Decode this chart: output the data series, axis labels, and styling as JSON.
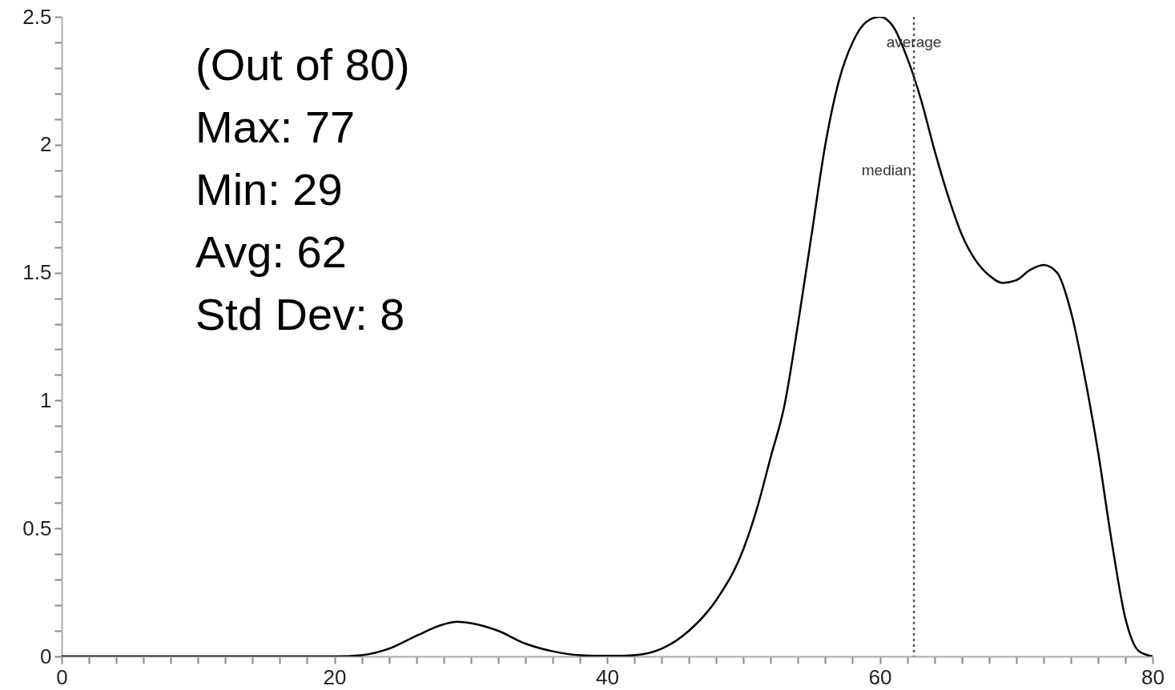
{
  "chart_data": {
    "type": "line",
    "x": [
      0,
      20,
      22,
      24,
      26,
      28,
      29,
      30,
      32,
      34,
      36,
      38,
      40,
      42,
      44,
      46,
      48,
      50,
      51,
      52,
      53,
      54,
      55,
      56,
      57,
      58,
      59,
      60,
      61,
      62,
      63,
      64,
      65,
      66,
      67,
      68,
      69,
      70,
      71,
      72,
      73,
      74,
      75,
      76,
      77,
      78,
      79,
      80
    ],
    "series": [
      {
        "color": "#000000",
        "values": [
          0,
          0,
          0.005,
          0.03,
          0.08,
          0.125,
          0.135,
          0.13,
          0.1,
          0.05,
          0.02,
          0.005,
          0.002,
          0.005,
          0.03,
          0.1,
          0.22,
          0.42,
          0.58,
          0.78,
          0.98,
          1.3,
          1.65,
          2.0,
          2.25,
          2.4,
          2.48,
          2.5,
          2.46,
          2.34,
          2.18,
          1.98,
          1.8,
          1.65,
          1.55,
          1.49,
          1.46,
          1.47,
          1.51,
          1.53,
          1.5,
          1.35,
          1.1,
          0.8,
          0.45,
          0.15,
          0.02,
          0
        ]
      }
    ],
    "xlim": [
      0,
      80
    ],
    "xticks": [
      0,
      {
        "value": 2,
        "label": null
      },
      {
        "value": 4,
        "label": null
      },
      {
        "value": 6,
        "label": null
      },
      {
        "value": 8,
        "label": null
      },
      {
        "value": 10,
        "label": null
      },
      {
        "value": 12,
        "label": null
      },
      {
        "value": 14,
        "label": null
      },
      {
        "value": 16,
        "label": null
      },
      {
        "value": 18,
        "label": null
      },
      20,
      {
        "value": 22,
        "label": null
      },
      {
        "value": 24,
        "label": null
      },
      {
        "value": 26,
        "label": null
      },
      {
        "value": 28,
        "label": null
      },
      {
        "value": 30,
        "label": null
      },
      {
        "value": 32,
        "label": null
      },
      {
        "value": 34,
        "label": null
      },
      {
        "value": 36,
        "label": null
      },
      {
        "value": 38,
        "label": null
      },
      40,
      {
        "value": 42,
        "label": null
      },
      {
        "value": 44,
        "label": null
      },
      {
        "value": 46,
        "label": null
      },
      {
        "value": 48,
        "label": null
      },
      {
        "value": 50,
        "label": null
      },
      {
        "value": 52,
        "label": null
      },
      {
        "value": 54,
        "label": null
      },
      {
        "value": 56,
        "label": null
      },
      {
        "value": 58,
        "label": null
      },
      60,
      {
        "value": 62,
        "label": null
      },
      {
        "value": 64,
        "label": null
      },
      {
        "value": 66,
        "label": null
      },
      {
        "value": 68,
        "label": null
      },
      {
        "value": 70,
        "label": null
      },
      {
        "value": 72,
        "label": null
      },
      {
        "value": 74,
        "label": null
      },
      {
        "value": 76,
        "label": null
      },
      {
        "value": 78,
        "label": null
      },
      80
    ],
    "ylim": [
      0,
      2.5
    ],
    "yticks": [
      0,
      {
        "value": 0.1,
        "label": null
      },
      {
        "value": 0.2,
        "label": null
      },
      {
        "value": 0.3,
        "label": null
      },
      {
        "value": 0.4,
        "label": null
      },
      0.5,
      {
        "value": 0.6,
        "label": null
      },
      {
        "value": 0.7,
        "label": null
      },
      {
        "value": 0.8,
        "label": null
      },
      {
        "value": 0.9,
        "label": null
      },
      1,
      {
        "value": 1.1,
        "label": null
      },
      {
        "value": 1.2,
        "label": null
      },
      {
        "value": 1.3,
        "label": null
      },
      {
        "value": 1.4,
        "label": null
      },
      1.5,
      {
        "value": 1.6,
        "label": null
      },
      {
        "value": 1.7,
        "label": null
      },
      {
        "value": 1.8,
        "label": null
      },
      {
        "value": 1.9,
        "label": null
      },
      2,
      {
        "value": 2.1,
        "label": null
      },
      {
        "value": 2.2,
        "label": null
      },
      {
        "value": 2.3,
        "label": null
      },
      {
        "value": 2.4,
        "label": null
      },
      2.5
    ],
    "ref_lines": [
      {
        "axis": "x",
        "value": 62.5,
        "label": "average",
        "line_style": "dotted",
        "color": "#555555"
      }
    ],
    "annotations": [
      "(Out of 80)",
      "Max: 77",
      "Min: 29",
      "Avg: 62",
      "Std Dev: 8",
      {
        "text": "median",
        "x": 62.5,
        "y": 1.9
      }
    ],
    "marker": "none",
    "line_style": "solid",
    "grid": false
  }
}
